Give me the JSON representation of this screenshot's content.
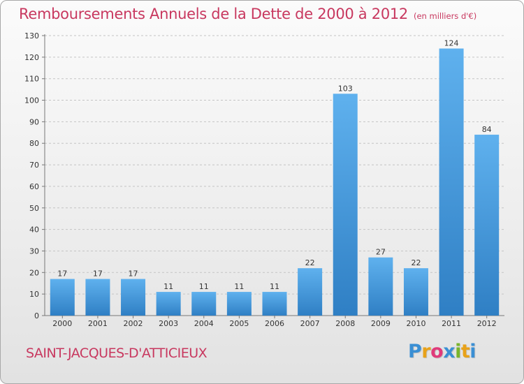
{
  "header": {
    "title": "Remboursements Annuels de la Dette de 2000 à 2012",
    "unit": "(en milliers d'€)"
  },
  "footer": {
    "commune": "SAINT-JACQUES-D'ATTICIEUX",
    "logo_letters": [
      "P",
      "r",
      "o",
      "x",
      "i",
      "t",
      "i"
    ],
    "logo_colors": [
      "#3a8fd4",
      "#e8a21a",
      "#e03a7a",
      "#3a8fd4",
      "#79b52c",
      "#e8a21a",
      "#3a8fd4"
    ]
  },
  "colors": {
    "bar": "#4a9ee0",
    "title": "#c8385f"
  },
  "chart_data": {
    "type": "bar",
    "title": "Remboursements Annuels de la Dette de 2000 à 2012",
    "xlabel": "",
    "ylabel": "",
    "categories": [
      "2000",
      "2001",
      "2002",
      "2003",
      "2004",
      "2005",
      "2006",
      "2007",
      "2008",
      "2009",
      "2010",
      "2011",
      "2012"
    ],
    "values": [
      17,
      17,
      17,
      11,
      11,
      11,
      11,
      22,
      103,
      27,
      22,
      124,
      84
    ],
    "ylim": [
      0,
      130
    ],
    "yticks": [
      0,
      10,
      20,
      30,
      40,
      50,
      60,
      70,
      80,
      90,
      100,
      110,
      120,
      130
    ],
    "grid": "horizontal-dashed",
    "legend": "none"
  }
}
